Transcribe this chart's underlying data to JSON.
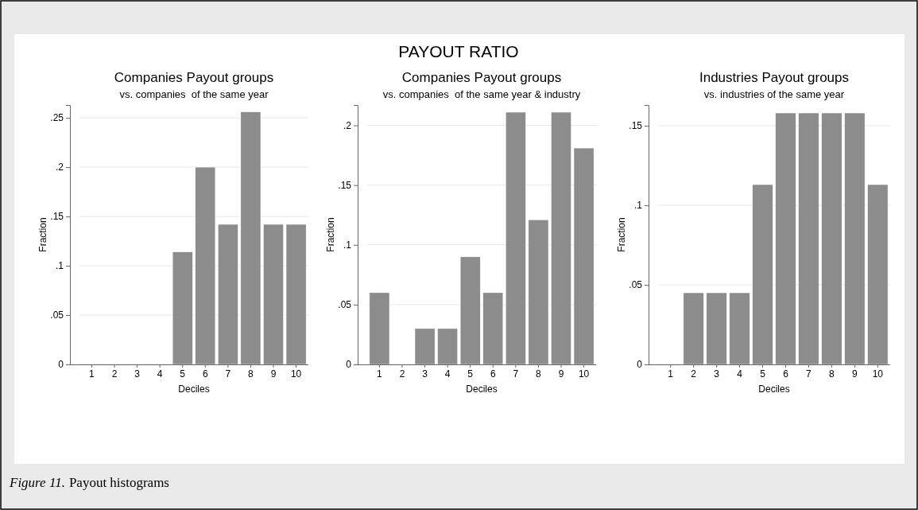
{
  "chart_data": [
    {
      "type": "bar",
      "title": "Companies Payout groups",
      "subtitle": "vs. companies  of the same year",
      "xlabel": "Deciles",
      "ylabel": "Fraction",
      "categories": [
        "1",
        "2",
        "3",
        "4",
        "5",
        "6",
        "7",
        "8",
        "9",
        "10"
      ],
      "values": [
        0,
        0,
        0,
        0,
        0.114,
        0.2,
        0.142,
        0.256,
        0.142,
        0.142
      ],
      "color": "#8c8c8c",
      "ylim": [
        0,
        0.263
      ],
      "yticks": [
        {
          "value": 0,
          "label": "0"
        },
        {
          "value": 0.05,
          "label": ".05"
        },
        {
          "value": 0.1,
          "label": ".1"
        },
        {
          "value": 0.15,
          "label": ".15"
        },
        {
          "value": 0.2,
          "label": ".2"
        },
        {
          "value": 0.25,
          "label": ".25"
        }
      ],
      "grid": "y",
      "annotations": [
        "PAYOUT RATIO",
        "Figure 11.",
        "Payout histograms"
      ]
    },
    {
      "type": "bar",
      "title": "Companies Payout groups",
      "subtitle": "vs. companies  of the same year & industry",
      "xlabel": "Deciles",
      "ylabel": "Fraction",
      "categories": [
        "1",
        "2",
        "3",
        "4",
        "5",
        "6",
        "7",
        "8",
        "9",
        "10"
      ],
      "values": [
        0.06,
        0,
        0.03,
        0.03,
        0.09,
        0.06,
        0.211,
        0.121,
        0.211,
        0.181
      ],
      "color": "#8c8c8c",
      "ylim": [
        0,
        0.217
      ],
      "yticks": [
        {
          "value": 0,
          "label": "0"
        },
        {
          "value": 0.05,
          "label": ".05"
        },
        {
          "value": 0.1,
          "label": ".1"
        },
        {
          "value": 0.15,
          "label": ".15"
        },
        {
          "value": 0.2,
          "label": ".2"
        }
      ],
      "grid": "y"
    },
    {
      "type": "bar",
      "title": "Industries Payout groups",
      "subtitle": "vs. industries of the same year",
      "xlabel": "Deciles",
      "ylabel": "Fraction",
      "categories": [
        "1",
        "2",
        "3",
        "4",
        "5",
        "6",
        "7",
        "8",
        "9",
        "10"
      ],
      "values": [
        0,
        0.045,
        0.045,
        0.045,
        0.113,
        0.158,
        0.158,
        0.158,
        0.158,
        0.113
      ],
      "color": "#8c8c8c",
      "ylim": [
        0,
        0.163
      ],
      "yticks": [
        {
          "value": 0,
          "label": "0"
        },
        {
          "value": 0.05,
          "label": ".05"
        },
        {
          "value": 0.1,
          "label": ".1"
        },
        {
          "value": 0.15,
          "label": ".15"
        }
      ],
      "grid": "y"
    }
  ]
}
